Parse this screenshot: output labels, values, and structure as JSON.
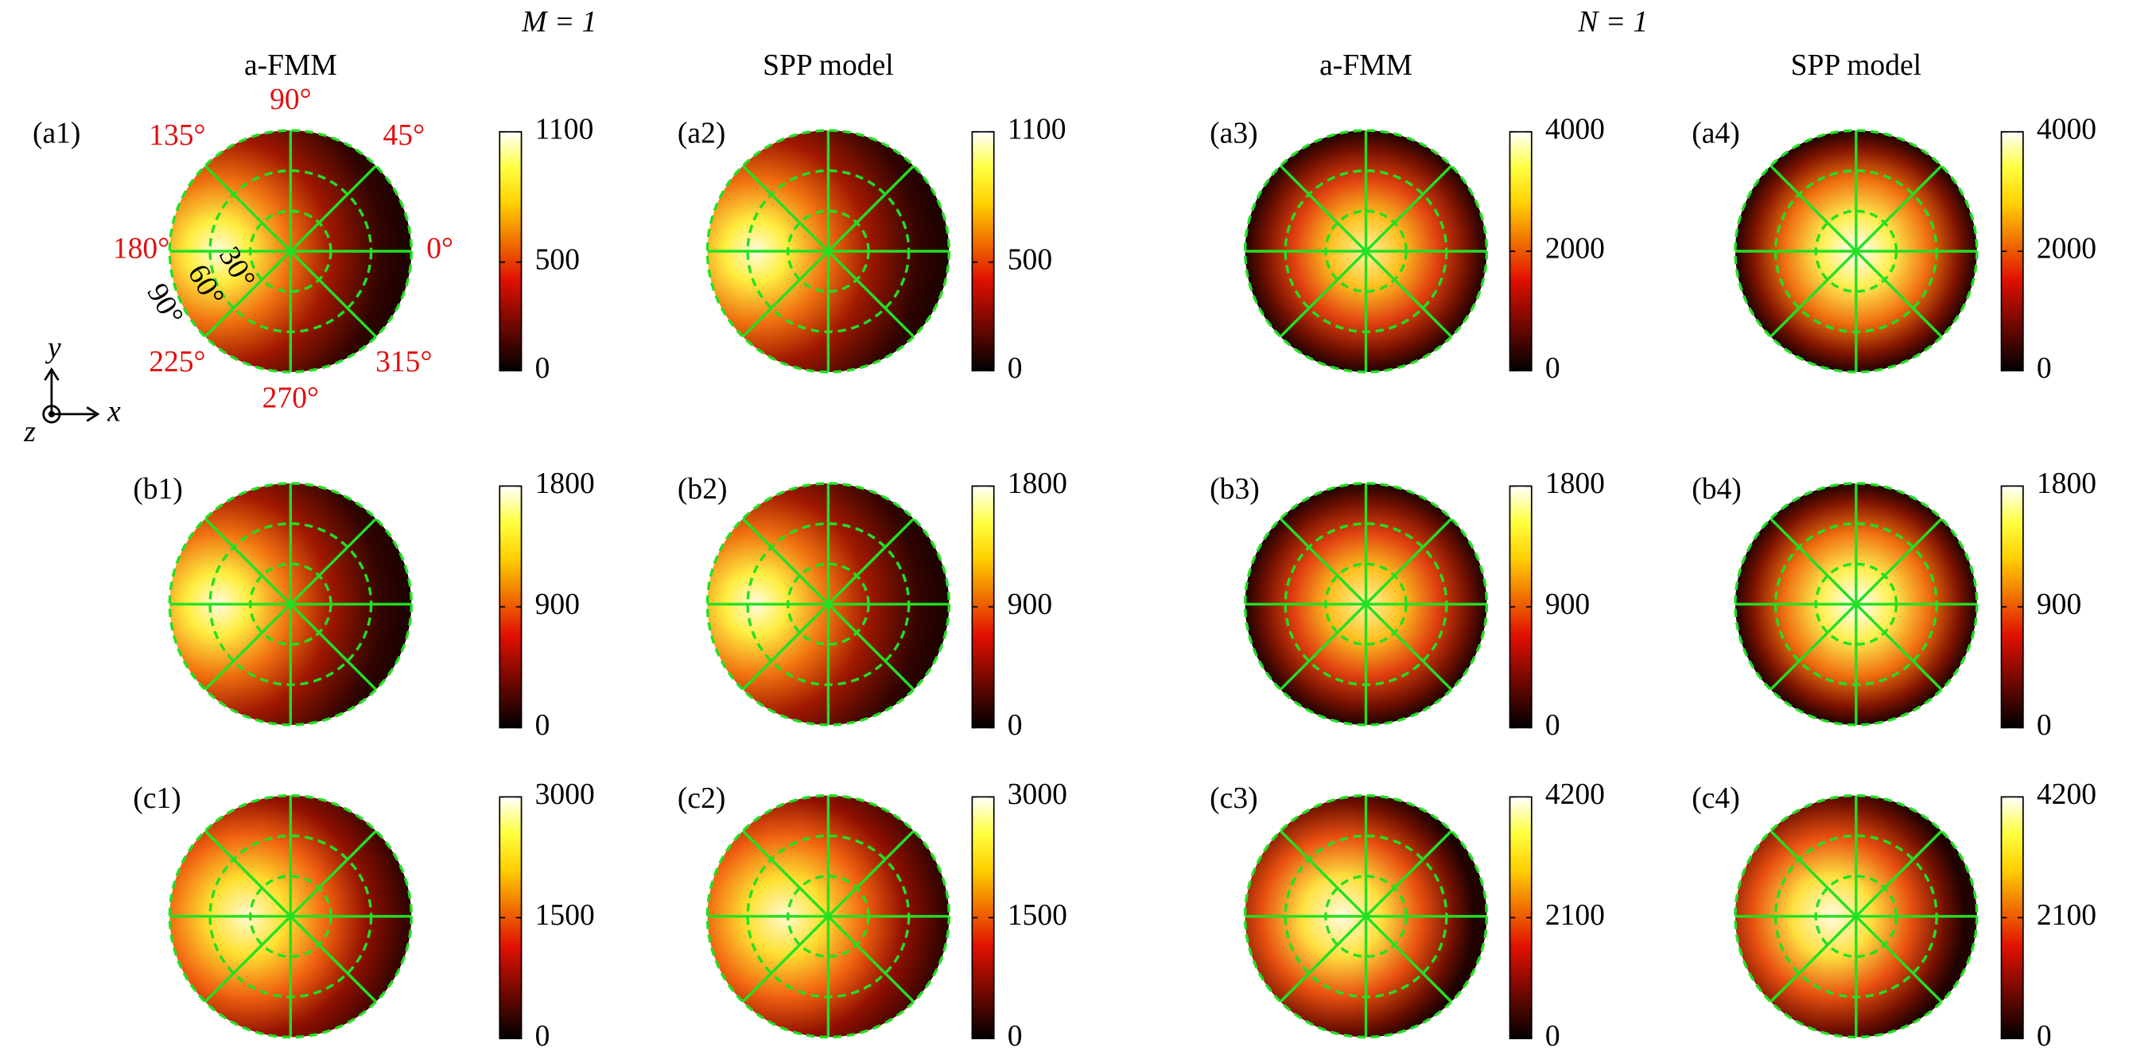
{
  "figure": {
    "group_titles": [
      "M = 1",
      "N = 1"
    ],
    "column_titles": [
      "a-FMM",
      "SPP model",
      "a-FMM",
      "SPP model"
    ],
    "axis_labels": [
      "y",
      "x",
      "z"
    ]
  },
  "chart_data": [
    {
      "type": "polar-heatmap",
      "label": "(a1)",
      "clim": [
        0,
        1100
      ],
      "cticks": [
        0,
        500,
        1100
      ],
      "angle_labels": [
        "90°",
        "45°",
        "0°",
        "315°",
        "270°",
        "225°",
        "180°",
        "135°"
      ],
      "radial_labels": [
        "30°",
        "60°",
        "90°"
      ]
    },
    {
      "type": "polar-heatmap",
      "label": "(a2)",
      "clim": [
        0,
        1100
      ],
      "cticks": [
        0,
        500,
        1100
      ]
    },
    {
      "type": "polar-heatmap",
      "label": "(a3)",
      "clim": [
        0,
        4000
      ],
      "cticks": [
        0,
        2000,
        4000
      ]
    },
    {
      "type": "polar-heatmap",
      "label": "(a4)",
      "clim": [
        0,
        4000
      ],
      "cticks": [
        0,
        2000,
        4000
      ]
    },
    {
      "type": "polar-heatmap",
      "label": "(b1)",
      "clim": [
        0,
        1800
      ],
      "cticks": [
        0,
        900,
        1800
      ]
    },
    {
      "type": "polar-heatmap",
      "label": "(b2)",
      "clim": [
        0,
        1800
      ],
      "cticks": [
        0,
        900,
        1800
      ]
    },
    {
      "type": "polar-heatmap",
      "label": "(b3)",
      "clim": [
        0,
        1800
      ],
      "cticks": [
        0,
        900,
        1800
      ]
    },
    {
      "type": "polar-heatmap",
      "label": "(b4)",
      "clim": [
        0,
        1800
      ],
      "cticks": [
        0,
        900,
        1800
      ]
    },
    {
      "type": "polar-heatmap",
      "label": "(c1)",
      "clim": [
        0,
        3000
      ],
      "cticks": [
        0,
        1500,
        3000
      ]
    },
    {
      "type": "polar-heatmap",
      "label": "(c2)",
      "clim": [
        0,
        3000
      ],
      "cticks": [
        0,
        1500,
        3000
      ]
    },
    {
      "type": "polar-heatmap",
      "label": "(c3)",
      "clim": [
        0,
        4200
      ],
      "cticks": [
        0,
        2100,
        4200
      ]
    },
    {
      "type": "polar-heatmap",
      "label": "(c4)",
      "clim": [
        0,
        4200
      ],
      "cticks": [
        0,
        2100,
        4200
      ]
    }
  ]
}
